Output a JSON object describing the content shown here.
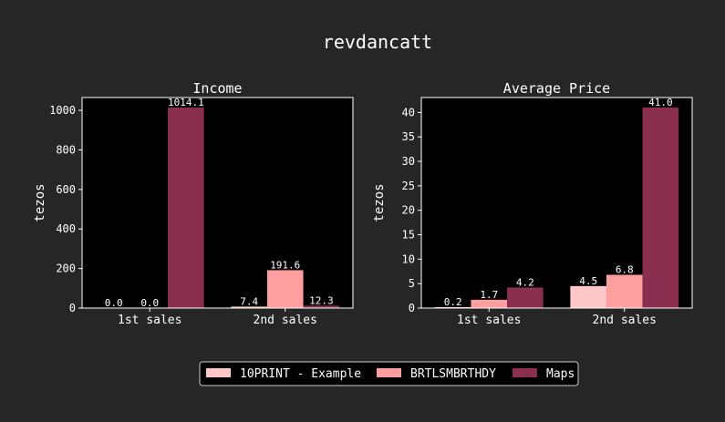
{
  "title": "revdancatt",
  "legend": {
    "entries": [
      {
        "label": "10PRINT - Example",
        "color": "#ffc7c7"
      },
      {
        "label": "BRTLSMBRTHDY",
        "color": "#ff9e9e"
      },
      {
        "label": "Maps",
        "color": "#8b2f50"
      }
    ]
  },
  "chart_data": [
    {
      "type": "bar",
      "title": "Income",
      "ylabel": "tezos",
      "xlabel": "",
      "categories": [
        "1st sales",
        "2nd sales"
      ],
      "ylim": [
        0,
        1065
      ],
      "yticks": [
        0,
        200,
        400,
        600,
        800,
        1000
      ],
      "series": [
        {
          "name": "10PRINT - Example",
          "values": [
            0.0,
            7.4
          ],
          "labels": [
            "0.0",
            "7.4"
          ]
        },
        {
          "name": "BRTLSMBRTHDY",
          "values": [
            0.0,
            191.6
          ],
          "labels": [
            "0.0",
            "191.6"
          ]
        },
        {
          "name": "Maps",
          "values": [
            1014.1,
            12.3
          ],
          "labels": [
            "1014.1",
            "12.3"
          ]
        }
      ],
      "grid": false
    },
    {
      "type": "bar",
      "title": "Average Price",
      "ylabel": "tezos",
      "xlabel": "",
      "categories": [
        "1st sales",
        "2nd sales"
      ],
      "ylim": [
        0,
        43.05
      ],
      "yticks": [
        0,
        5,
        10,
        15,
        20,
        25,
        30,
        35,
        40
      ],
      "series": [
        {
          "name": "10PRINT - Example",
          "values": [
            0.2,
            4.5
          ],
          "labels": [
            "0.2",
            "4.5"
          ]
        },
        {
          "name": "BRTLSMBRTHDY",
          "values": [
            1.7,
            6.8
          ],
          "labels": [
            "1.7",
            "6.8"
          ]
        },
        {
          "name": "Maps",
          "values": [
            4.2,
            41.0
          ],
          "labels": [
            "4.2",
            "41.0"
          ]
        }
      ],
      "grid": false
    }
  ]
}
